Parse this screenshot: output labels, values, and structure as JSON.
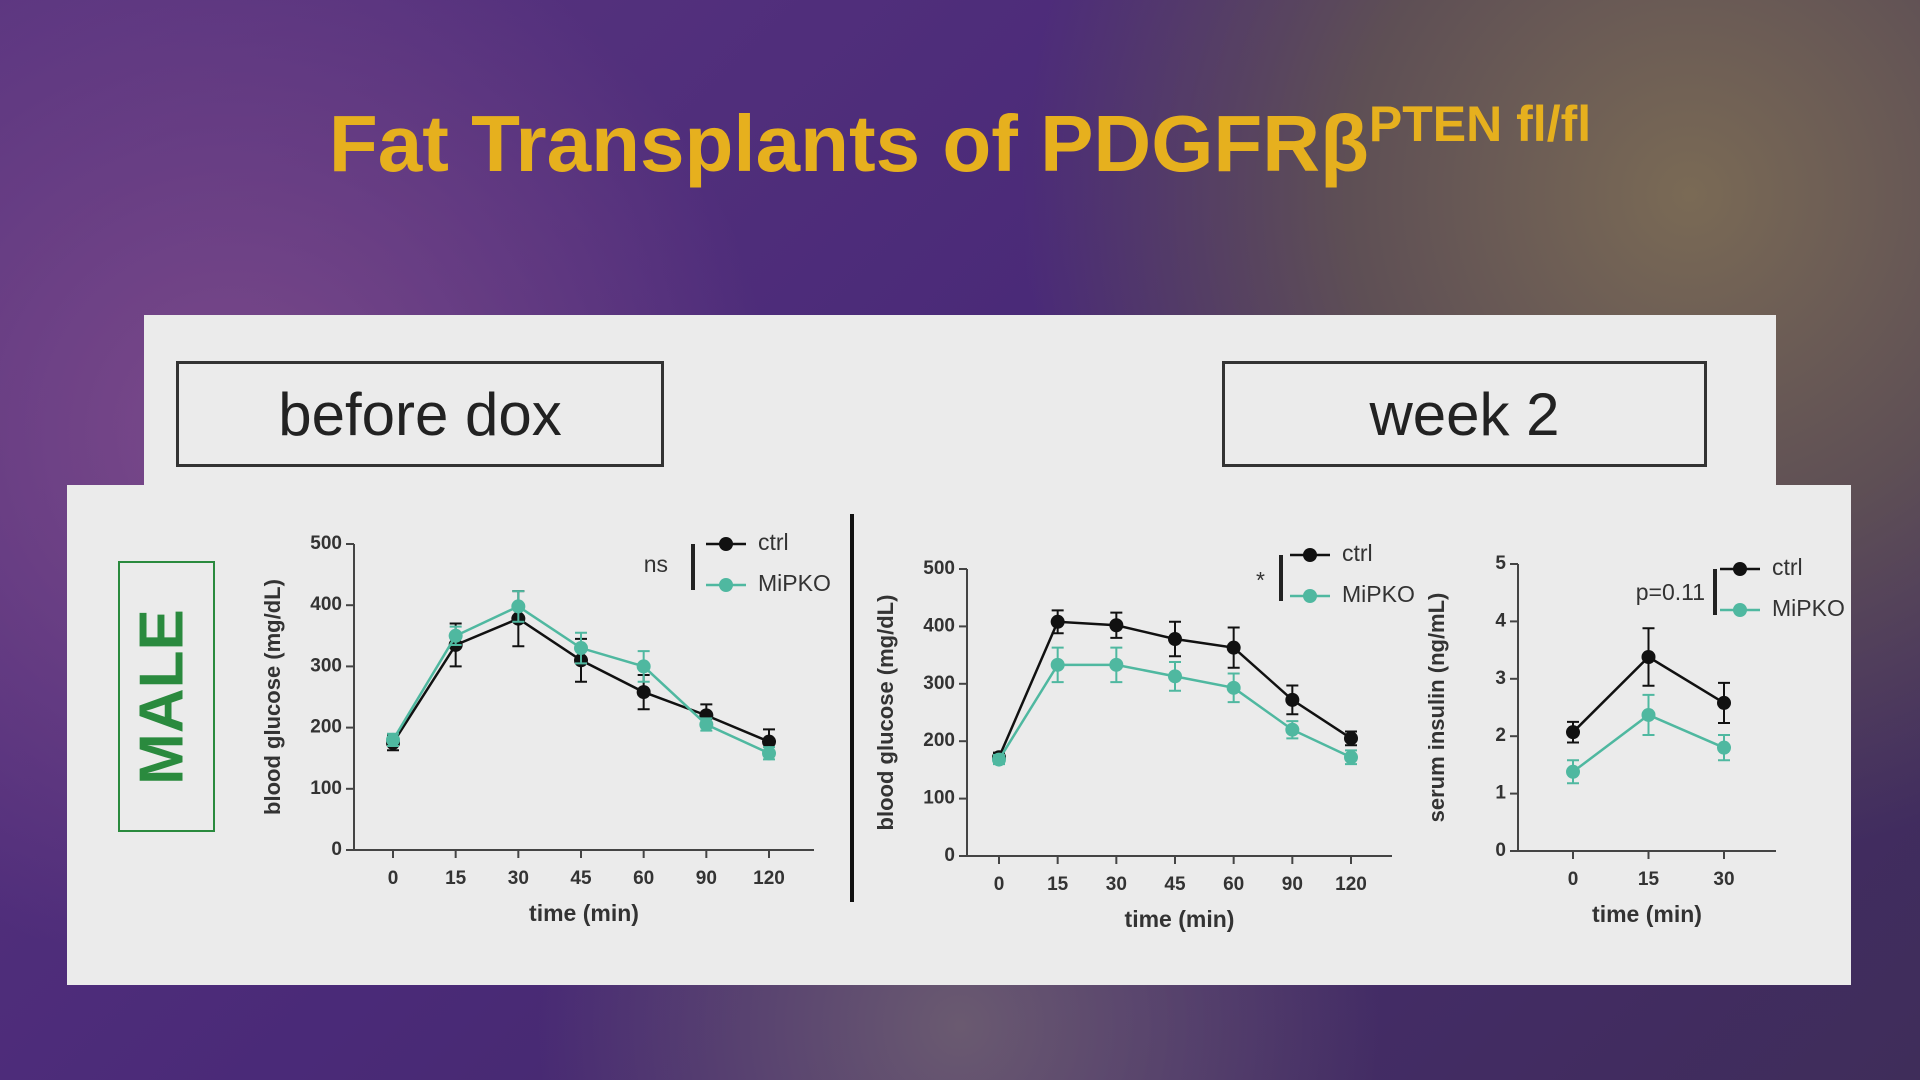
{
  "title": "Fat Transplants of PDGFRβ",
  "title_superscript": "PTEN fl/fl",
  "panel_labels": [
    "before dox",
    "week 2"
  ],
  "sex_label": "MALE",
  "chart_data": [
    {
      "type": "line",
      "categories": [
        "0",
        "15",
        "30",
        "45",
        "60",
        "90",
        "120"
      ],
      "x_label": "time (min)",
      "y_label": "blood glucose (mg/dL)",
      "annotation": "ns",
      "ylim": [
        0,
        500
      ],
      "yticks": [
        0,
        100,
        200,
        300,
        400,
        500
      ],
      "series": [
        {
          "name": "ctrl",
          "color": "#111111",
          "values": [
            175,
            335,
            378,
            310,
            258,
            220,
            177
          ],
          "errors": [
            12,
            35,
            45,
            35,
            28,
            18,
            20
          ]
        },
        {
          "name": "MiPKO",
          "color": "#4fb8a0",
          "values": [
            180,
            350,
            398,
            330,
            300,
            205,
            158
          ],
          "errors": [
            10,
            15,
            25,
            25,
            25,
            10,
            10
          ]
        }
      ]
    },
    {
      "type": "line",
      "categories": [
        "0",
        "15",
        "30",
        "45",
        "60",
        "90",
        "120"
      ],
      "x_label": "time (min)",
      "y_label": "blood glucose (mg/dL)",
      "annotation": "*",
      "ylim": [
        0,
        500
      ],
      "yticks": [
        0,
        100,
        200,
        300,
        400,
        500
      ],
      "series": [
        {
          "name": "ctrl",
          "color": "#111111",
          "values": [
            172,
            408,
            402,
            378,
            363,
            272,
            205
          ],
          "errors": [
            8,
            20,
            22,
            30,
            35,
            25,
            12
          ]
        },
        {
          "name": "MiPKO",
          "color": "#4fb8a0",
          "values": [
            168,
            333,
            333,
            313,
            293,
            220,
            172
          ],
          "errors": [
            8,
            30,
            30,
            25,
            25,
            15,
            12
          ]
        }
      ]
    },
    {
      "type": "line",
      "categories": [
        "0",
        "15",
        "30"
      ],
      "x_label": "time (min)",
      "y_label": "serum insulin (ng/mL)",
      "annotation": "p=0.11",
      "ylim": [
        0,
        5
      ],
      "yticks": [
        0,
        1,
        2,
        3,
        4,
        5
      ],
      "series": [
        {
          "name": "ctrl",
          "color": "#111111",
          "values": [
            2.07,
            3.38,
            2.58
          ],
          "errors": [
            0.18,
            0.5,
            0.35
          ]
        },
        {
          "name": "MiPKO",
          "color": "#4fb8a0",
          "values": [
            1.38,
            2.37,
            1.8
          ],
          "errors": [
            0.2,
            0.35,
            0.22
          ]
        }
      ]
    }
  ]
}
